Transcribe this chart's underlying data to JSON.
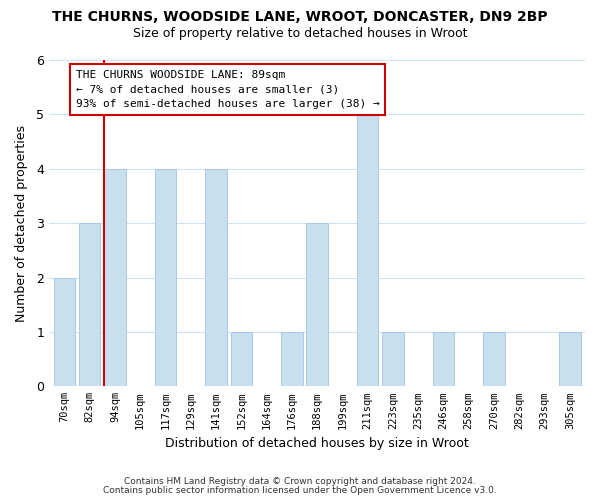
{
  "title": "THE CHURNS, WOODSIDE LANE, WROOT, DONCASTER, DN9 2BP",
  "subtitle": "Size of property relative to detached houses in Wroot",
  "xlabel": "Distribution of detached houses by size in Wroot",
  "ylabel": "Number of detached properties",
  "footer_line1": "Contains HM Land Registry data © Crown copyright and database right 2024.",
  "footer_line2": "Contains public sector information licensed under the Open Government Licence v3.0.",
  "bin_labels": [
    "70sqm",
    "82sqm",
    "94sqm",
    "105sqm",
    "117sqm",
    "129sqm",
    "141sqm",
    "152sqm",
    "164sqm",
    "176sqm",
    "188sqm",
    "199sqm",
    "211sqm",
    "223sqm",
    "235sqm",
    "246sqm",
    "258sqm",
    "270sqm",
    "282sqm",
    "293sqm",
    "305sqm"
  ],
  "bar_values": [
    2,
    3,
    4,
    0,
    4,
    0,
    4,
    1,
    0,
    1,
    3,
    0,
    5,
    1,
    0,
    1,
    0,
    1,
    0,
    0,
    1
  ],
  "bar_color": "#c8dff0",
  "bar_edge_color": "#aac8e8",
  "vline_x_index": 2,
  "vline_color": "#cc0000",
  "ylim": [
    0,
    6
  ],
  "yticks": [
    0,
    1,
    2,
    3,
    4,
    5,
    6
  ],
  "annotation_title": "THE CHURNS WOODSIDE LANE: 89sqm",
  "annotation_line1": "← 7% of detached houses are smaller (3)",
  "annotation_line2": "93% of semi-detached houses are larger (38) →",
  "background_color": "#ffffff",
  "grid_color": "#d0e4f0"
}
